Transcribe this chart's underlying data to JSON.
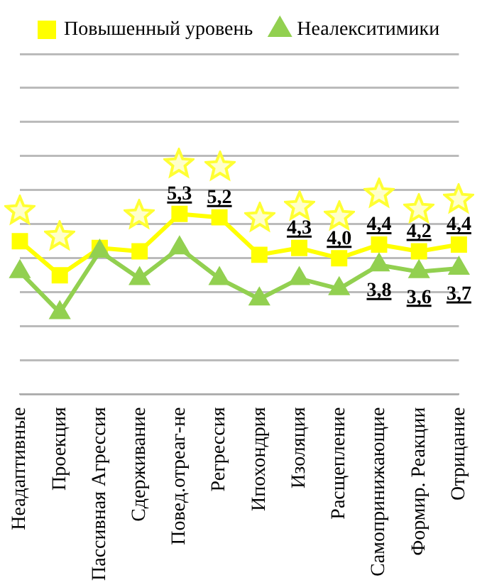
{
  "chart_data": {
    "type": "line",
    "categories": [
      "Неадаптивные",
      "Проекция",
      "Пассивная Агрессия",
      "Сдерживание",
      "Повед.отреаг-не",
      "Регрессия",
      "Ипохондрия",
      "Изоляция",
      "Расщепление",
      "Самопринижающие",
      "Формир. Реакции",
      "Отрицание"
    ],
    "series": [
      {
        "name": "Повышенный уровень",
        "color": "#ffff00",
        "marker": "square",
        "values": [
          4.5,
          3.5,
          4.3,
          4.2,
          5.3,
          5.2,
          4.1,
          4.3,
          4.0,
          4.4,
          4.2,
          4.4
        ],
        "value_labels": [
          null,
          null,
          null,
          null,
          "5,3",
          "5,2",
          null,
          "4,3",
          "4,0",
          "4,4",
          "4,2",
          "4,4"
        ]
      },
      {
        "name": "Неалекситимики",
        "color": "#92d050",
        "marker": "triangle",
        "values": [
          3.6,
          2.4,
          4.2,
          3.4,
          4.3,
          3.4,
          2.8,
          3.4,
          3.1,
          3.8,
          3.6,
          3.7
        ],
        "value_labels": [
          null,
          null,
          null,
          null,
          null,
          null,
          null,
          null,
          null,
          "3,8",
          "3,6",
          "3,7"
        ]
      }
    ],
    "ylim": [
      0,
      10
    ],
    "yticks": [
      {
        "value": 0,
        "label": null
      },
      {
        "value": 1,
        "label": null
      },
      {
        "value": 2,
        "label": null
      },
      {
        "value": 3,
        "label": null
      },
      {
        "value": 4,
        "label": null
      },
      {
        "value": 5,
        "label": null
      },
      {
        "value": 6,
        "label": null
      },
      {
        "value": 7,
        "label": null
      },
      {
        "value": 8,
        "label": null
      },
      {
        "value": 9,
        "label": null
      },
      {
        "value": 10,
        "label": null
      }
    ],
    "grid": "y",
    "legend": "top",
    "tick_labels": "x",
    "line_style": "solid"
  }
}
